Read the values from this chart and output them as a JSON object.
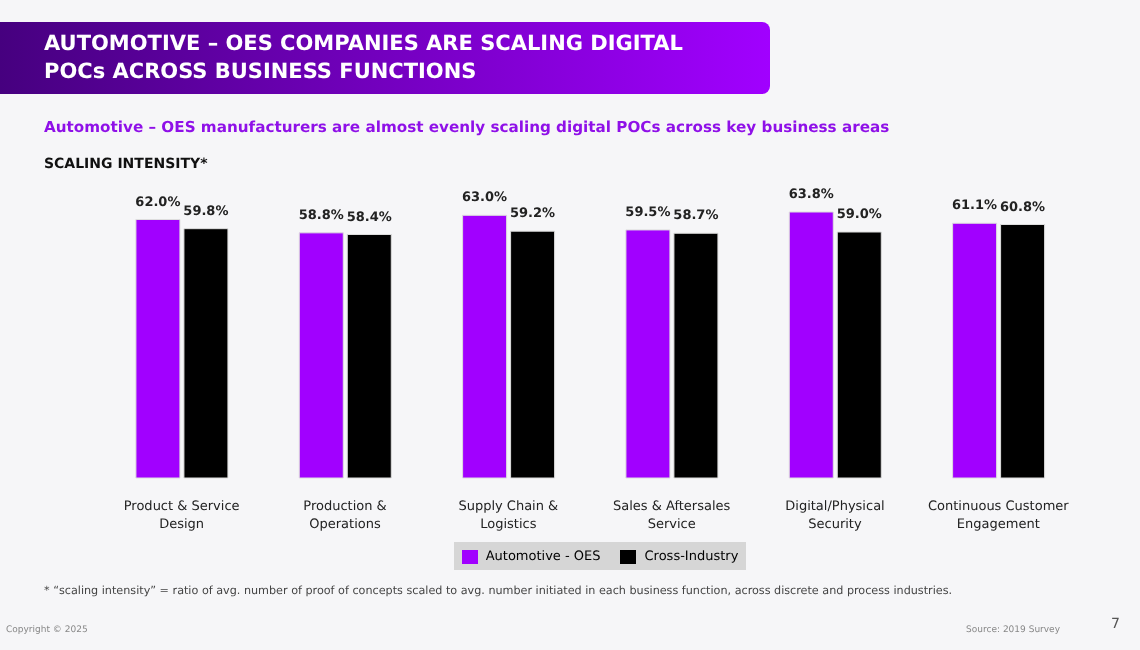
{
  "chart_data": {
    "type": "bar",
    "title": "AUTOMOTIVE – OES COMPANIES ARE SCALING DIGITAL POCs ACROSS BUSINESS FUNCTIONS",
    "subtitle": "Automotive – OES manufacturers are almost evenly scaling digital POCs across key business areas",
    "ylabel": "SCALING INTENSITY*",
    "categories": [
      "Product & Service Design",
      "Production & Operations",
      "Supply Chain & Logistics",
      "Sales & Aftersales Service",
      "Digital/Physical Security",
      "Continuous Customer Engagement"
    ],
    "series": [
      {
        "name": "Automotive - OES",
        "color": "#a100ff",
        "values": [
          62.0,
          58.8,
          63.0,
          59.5,
          63.8,
          61.1
        ],
        "value_labels": [
          "62.0%",
          "58.8%",
          "63.0%",
          "59.5%",
          "63.8%",
          "61.1%"
        ]
      },
      {
        "name": "Cross-Industry",
        "color": "#000000",
        "values": [
          59.8,
          58.4,
          59.2,
          58.7,
          59.0,
          60.8
        ],
        "value_labels": [
          "59.8%",
          "58.4%",
          "59.2%",
          "58.7%",
          "59.0%",
          "60.8%"
        ]
      }
    ],
    "legend": "bottom",
    "grid": false,
    "annotations": [
      "* “scaling intensity” = ratio of avg. number of proof of concepts scaled to avg. number initiated in each business function, across discrete and process industries.",
      "Copyright © 2025",
      "Source: 2019 Survey",
      "7"
    ]
  }
}
